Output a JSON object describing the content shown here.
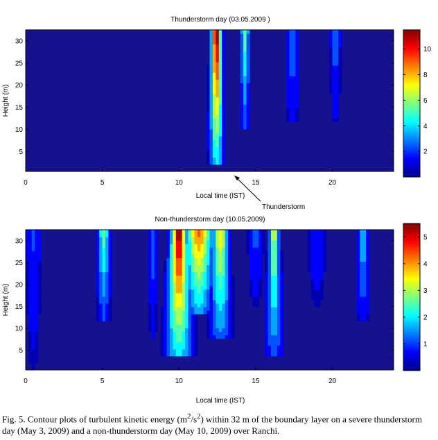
{
  "chart_data": [
    {
      "type": "heatmap",
      "title": "Thunderstorm day (03.05.2009 )",
      "xlabel": "Local time (IST)",
      "ylabel": "Height (m)",
      "xlim": [
        0,
        24
      ],
      "ylim": [
        0.5,
        32.5
      ],
      "x_ticks": [
        0,
        5,
        10,
        15,
        20
      ],
      "y_ticks": [
        5,
        10,
        15,
        20,
        25,
        30
      ],
      "colorbar": {
        "min": 0,
        "max": 11.5,
        "ticks": [
          2,
          4,
          6,
          8,
          10
        ]
      },
      "colorscale": [
        "#00008f",
        "#0000ff",
        "#00ffff",
        "#ffff00",
        "#ff0000",
        "#800000"
      ],
      "background_value": 0.3,
      "features": [
        {
          "x": 12.45,
          "base": 2.5,
          "peak": 11.5,
          "width": 0.45,
          "top_width": 0.3
        },
        {
          "x": 14.3,
          "base": 10,
          "peak": 5.5,
          "width": 0.25,
          "top_width": 0.25
        },
        {
          "x": 17.4,
          "base": 12,
          "peak": 3.0,
          "width": 0.55,
          "top_width": 0.35
        },
        {
          "x": 20.2,
          "base": 12,
          "peak": 2.8,
          "width": 0.35,
          "top_width": 0.3
        }
      ],
      "annotation": {
        "text": "Thunderstorm",
        "points_to_x": 13.4,
        "points_to_y": 0.5
      }
    },
    {
      "type": "heatmap",
      "title": "Non-thunderstorm day (10.05.2009)",
      "xlabel": "Local time (IST)",
      "ylabel": "Height (m)",
      "xlim": [
        0,
        24
      ],
      "ylim": [
        0.5,
        32.5
      ],
      "x_ticks": [
        0,
        5,
        10,
        15,
        20
      ],
      "y_ticks": [
        5,
        10,
        15,
        20,
        25,
        30
      ],
      "colorbar": {
        "min": 0,
        "max": 5.5,
        "ticks": [
          1,
          2,
          3,
          4,
          5
        ]
      },
      "colorscale": [
        "#00008f",
        "#0000ff",
        "#00ffff",
        "#ffff00",
        "#ff0000",
        "#800000"
      ],
      "background_value": 0.3,
      "features": [
        {
          "x": 0.5,
          "base": 0,
          "peak": 1.0,
          "width": 0.5,
          "top_width": 0.5
        },
        {
          "x": 5.1,
          "base": 12,
          "peak": 2.6,
          "width": 0.4,
          "top_width": 0.35
        },
        {
          "x": 8.3,
          "base": 8,
          "peak": 1.3,
          "width": 0.3,
          "top_width": 0.3
        },
        {
          "x": 10.0,
          "base": 4,
          "peak": 5.5,
          "width": 0.9,
          "top_width": 0.45
        },
        {
          "x": 11.3,
          "base": 13,
          "peak": 4.3,
          "width": 0.8,
          "top_width": 0.8
        },
        {
          "x": 12.7,
          "base": 8,
          "peak": 3.6,
          "width": 0.7,
          "top_width": 0.45
        },
        {
          "x": 16.2,
          "base": 4,
          "peak": 3.2,
          "width": 0.55,
          "top_width": 0.3
        },
        {
          "x": 22.0,
          "base": 12,
          "peak": 1.9,
          "width": 0.45,
          "top_width": 0.35
        },
        {
          "x": 15.0,
          "base": 15,
          "peak": 1.1,
          "width": 0.5,
          "top_width": 0.5
        },
        {
          "x": 19.0,
          "base": 14,
          "peak": 0.9,
          "width": 0.7,
          "top_width": 0.6
        }
      ]
    }
  ],
  "caption": {
    "text_pre": "Fig. 5. Contour plots of turbulent kinetic energy (m",
    "sup1": "2",
    "slash": "/s",
    "sup2": "2",
    "text_post": ") within 32 m of the boundary layer on a severe thunderstorm day (May 3, 2009) and a non-thunderstorm day (May 10, 2009) over Ranchi."
  }
}
